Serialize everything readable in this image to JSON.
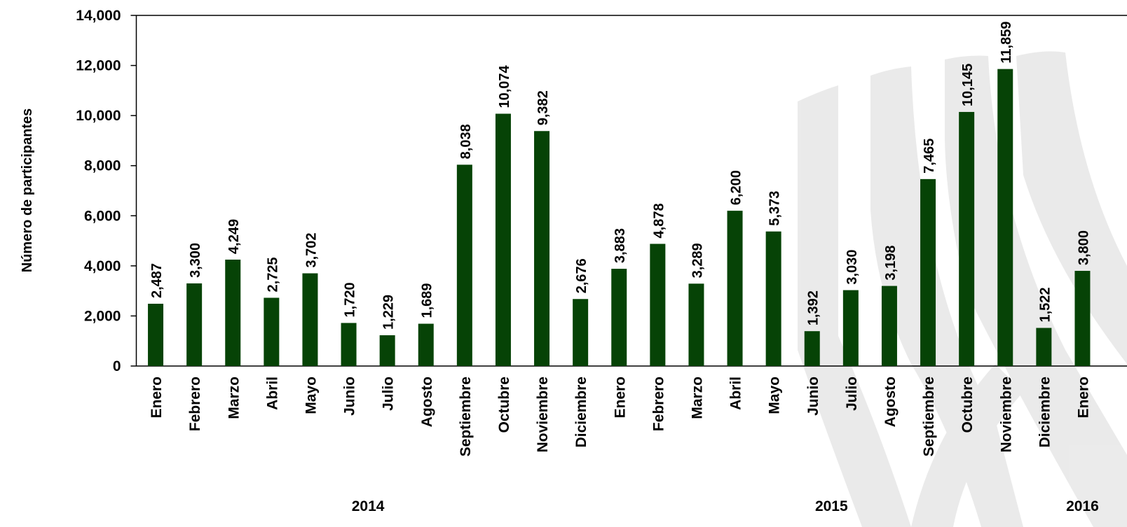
{
  "chart_data": {
    "type": "bar",
    "y_label": "Número de participantes",
    "categories": [
      "Enero",
      "Febrero",
      "Marzo",
      "Abril",
      "Mayo",
      "Junio",
      "Julio",
      "Agosto",
      "Septiembre",
      "Octubre",
      "Noviembre",
      "Diciembre",
      "Enero",
      "Febrero",
      "Marzo",
      "Abril",
      "Mayo",
      "Junio",
      "Julio",
      "Agosto",
      "Septiembre",
      "Octubre",
      "Noviembre",
      "Diciembre",
      "Enero"
    ],
    "values": [
      2487,
      3300,
      4249,
      2725,
      3702,
      1720,
      1229,
      1689,
      8038,
      10074,
      9382,
      2676,
      3883,
      4878,
      3289,
      6200,
      5373,
      1392,
      3030,
      3198,
      7465,
      10145,
      11859,
      1522,
      3800
    ],
    "value_labels": [
      "2,487",
      "3,300",
      "4,249",
      "2,725",
      "3,702",
      "1,720",
      "1,229",
      "1,689",
      "8,038",
      "10,074",
      "9,382",
      "2,676",
      "3,883",
      "4,878",
      "3,289",
      "6,200",
      "5,373",
      "1,392",
      "3,030",
      "3,198",
      "7,465",
      "10,145",
      "11,859",
      "1,522",
      "3,800"
    ],
    "group_labels": [
      "2014",
      "2015",
      "2016"
    ],
    "color": "#064306",
    "ylim": [
      0,
      14000
    ],
    "yticks": [
      0,
      {
        "value": 2000,
        "label": "2,000"
      },
      {
        "value": 4000,
        "label": "4,000"
      },
      {
        "value": 6000,
        "label": "6,000"
      },
      {
        "value": 8000,
        "label": "8,000"
      },
      {
        "value": 10000,
        "label": "10,000"
      },
      {
        "value": 12000,
        "label": "12,000"
      },
      {
        "value": 14000,
        "label": "14,000"
      }
    ]
  }
}
